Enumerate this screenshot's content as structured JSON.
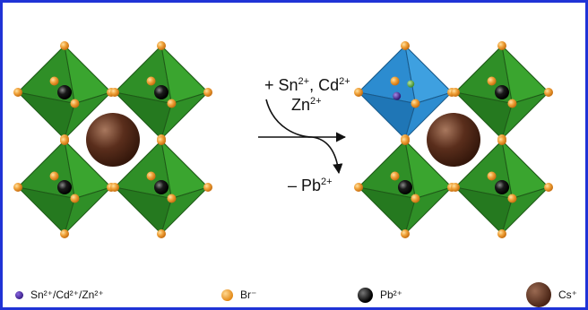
{
  "reaction": {
    "added_prefix": "+ Sn",
    "added_sn_charge": "2+",
    "added_mid": ", Cd",
    "added_cd_charge": "2+",
    "added_line2": "Zn",
    "added_zn_charge": "2+",
    "removed_prefix": "– Pb",
    "removed_charge": "2+"
  },
  "legend": {
    "dopant": "Sn²⁺/Cd²⁺/Zn²⁺",
    "br": "Br⁻",
    "pb": "Pb²⁺",
    "cs": "Cs⁺"
  },
  "colors": {
    "border": "#1f33d6",
    "octahedron": "#3fae35",
    "doped_octahedron": "#2b93d8",
    "br": "#eb9a28",
    "pb": "#000000",
    "cs": "#4a2516",
    "dopant": "#3a1f8a"
  }
}
